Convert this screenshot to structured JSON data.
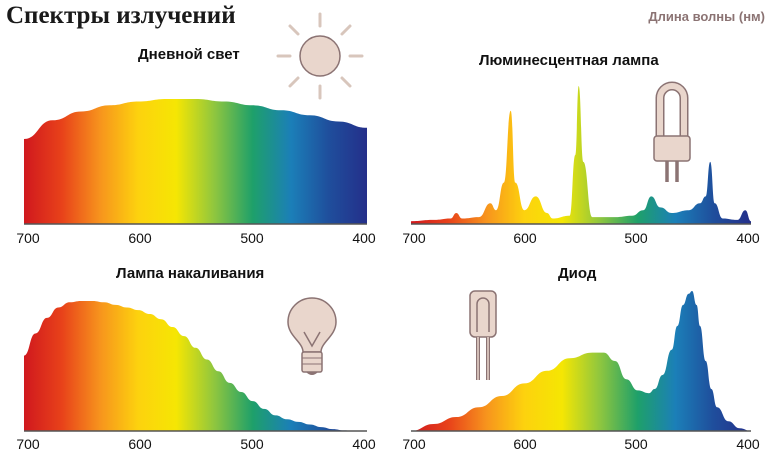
{
  "title": "Спектры излучений",
  "unit_label": "Длина волны (нм)",
  "panels": [
    {
      "title": "Дневной свет",
      "icon": "sun-icon"
    },
    {
      "title": "Люминесцентная лампа",
      "icon": "fluorescent-lamp-icon"
    },
    {
      "title": "Лампа накаливания",
      "icon": "incandescent-bulb-icon"
    },
    {
      "title": "Диод",
      "icon": "led-diode-icon"
    }
  ],
  "axis_ticks": [
    "700",
    "600",
    "500",
    "400"
  ],
  "colors": {
    "spectrum_stops": [
      "#d0181e",
      "#e8421a",
      "#f7941d",
      "#fdd20e",
      "#f5e603",
      "#8ec63f",
      "#1ea06a",
      "#1b7fb8",
      "#1f4e9c",
      "#242f8a"
    ],
    "icon_fill": "#e9d6cc",
    "icon_stroke": "#8b7373",
    "unit_label": "#8b7373"
  },
  "chart_data": [
    {
      "type": "area",
      "name": "Дневной свет",
      "x_unit": "nm",
      "x": [
        700,
        675,
        650,
        625,
        600,
        575,
        550,
        525,
        500,
        475,
        450,
        425,
        400
      ],
      "values": [
        0.68,
        0.83,
        0.9,
        0.95,
        0.98,
        1.0,
        1.0,
        0.98,
        0.95,
        0.91,
        0.87,
        0.82,
        0.77
      ],
      "xlim": [
        700,
        400
      ]
    },
    {
      "type": "area",
      "name": "Люминесцентная лампа",
      "x_unit": "nm",
      "x": [
        700,
        680,
        665,
        660,
        655,
        640,
        630,
        625,
        618,
        612,
        608,
        600,
        590,
        580,
        575,
        560,
        555,
        552,
        548,
        540,
        520,
        505,
        495,
        488,
        480,
        470,
        455,
        445,
        440,
        436,
        432,
        425,
        412,
        405,
        400
      ],
      "values": [
        0.02,
        0.03,
        0.04,
        0.08,
        0.04,
        0.05,
        0.15,
        0.1,
        0.3,
        0.82,
        0.3,
        0.1,
        0.2,
        0.08,
        0.04,
        0.06,
        0.5,
        1.0,
        0.45,
        0.05,
        0.05,
        0.06,
        0.1,
        0.2,
        0.12,
        0.08,
        0.1,
        0.15,
        0.2,
        0.45,
        0.15,
        0.04,
        0.03,
        0.1,
        0.02
      ],
      "xlim": [
        700,
        400
      ]
    },
    {
      "type": "area",
      "name": "Лампа накаливания",
      "x_unit": "nm",
      "x": [
        700,
        690,
        680,
        670,
        660,
        650,
        640,
        630,
        620,
        610,
        600,
        590,
        580,
        570,
        560,
        550,
        540,
        530,
        520,
        510,
        500,
        490,
        480,
        470,
        460,
        450,
        440,
        430,
        420,
        410,
        400
      ],
      "values": [
        0.58,
        0.75,
        0.87,
        0.95,
        0.99,
        1.0,
        1.0,
        0.99,
        0.97,
        0.95,
        0.93,
        0.9,
        0.86,
        0.8,
        0.73,
        0.64,
        0.55,
        0.46,
        0.37,
        0.3,
        0.23,
        0.17,
        0.12,
        0.09,
        0.07,
        0.05,
        0.03,
        0.015,
        0.005,
        0.0,
        0.0
      ],
      "xlim": [
        700,
        400
      ]
    },
    {
      "type": "area",
      "name": "Диод",
      "x_unit": "nm",
      "x": [
        700,
        680,
        660,
        640,
        620,
        600,
        580,
        560,
        540,
        530,
        520,
        510,
        500,
        490,
        485,
        478,
        470,
        465,
        460,
        455,
        452,
        448,
        445,
        440,
        435,
        430,
        420,
        410,
        400
      ],
      "values": [
        0.0,
        0.05,
        0.1,
        0.17,
        0.25,
        0.34,
        0.43,
        0.52,
        0.56,
        0.56,
        0.5,
        0.37,
        0.29,
        0.27,
        0.3,
        0.4,
        0.58,
        0.75,
        0.9,
        0.98,
        1.0,
        0.9,
        0.75,
        0.5,
        0.3,
        0.17,
        0.07,
        0.02,
        0.0
      ],
      "xlim": [
        700,
        400
      ]
    }
  ]
}
